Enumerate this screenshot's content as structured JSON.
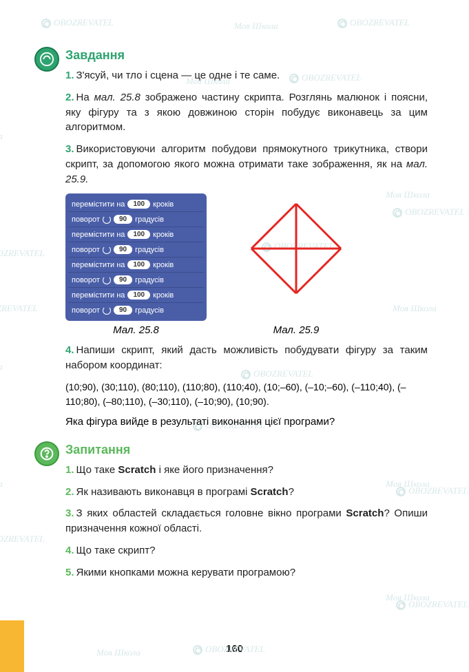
{
  "watermarks": {
    "text1": "Моя Школа",
    "text2": "OBOZREVATEL"
  },
  "section1": {
    "heading": "Завдання",
    "icon_name": "task-icon",
    "items": [
      {
        "n": "1.",
        "html": "З'ясуй, чи тло і сцена — це одне і те саме."
      },
      {
        "n": "2.",
        "html": "На <i>мал. 25.8</i> зображено частину скрипта. Розглянь малюнок і поясни, яку фігуру та з якою довжиною сторін побудує виконавець за цим алгоритмом."
      },
      {
        "n": "3.",
        "html": "Використовуючи алгоритм побудови прямокутного трикутника, створи скрипт, за допомогою якого можна отримати таке зображення, як на <i>мал. 25.9.</i>"
      }
    ],
    "script_blocks": [
      {
        "type": "move",
        "label_pre": "перемістити на",
        "value": "100",
        "label_post": "кроків"
      },
      {
        "type": "turn",
        "label_pre": "поворот",
        "value": "90",
        "label_post": "градусів"
      },
      {
        "type": "move",
        "label_pre": "перемістити на",
        "value": "100",
        "label_post": "кроків"
      },
      {
        "type": "turn",
        "label_pre": "поворот",
        "value": "90",
        "label_post": "градусів"
      },
      {
        "type": "move",
        "label_pre": "перемістити на",
        "value": "100",
        "label_post": "кроків"
      },
      {
        "type": "turn",
        "label_pre": "поворот",
        "value": "90",
        "label_post": "градусів"
      },
      {
        "type": "move",
        "label_pre": "перемістити на",
        "value": "100",
        "label_post": "кроків"
      },
      {
        "type": "turn",
        "label_pre": "поворот",
        "value": "90",
        "label_post": "градусів"
      }
    ],
    "diamond": {
      "stroke": "#e52521",
      "stroke_width": 3,
      "size": 130
    },
    "caption1": "Мал. 25.8",
    "caption2": "Мал. 25.9",
    "item4": {
      "n": "4.",
      "text": "Напиши скрипт, який дасть можливість побудувати фігуру за таким набором координат:"
    },
    "coords": "(10;90), (30;110), (80;110), (110;80), (110;40), (10;–60), (–10;–60), (–110;40), (–110;80), (–80;110), (–30;110), (–10;90), (10;90).",
    "item4_q": "Яка фігура вийде в результаті виконання цієї програми?"
  },
  "section2": {
    "heading": "Запитання",
    "icon_name": "question-icon",
    "items": [
      {
        "n": "1.",
        "html": "Що таке <b>Scratch</b> і яке його призначення?"
      },
      {
        "n": "2.",
        "html": "Як називають виконавця в програмі <b>Scratch</b>?"
      },
      {
        "n": "3.",
        "html": "З яких областей складається головне вікно програми <b>Scratch</b>? Опиши призначення кожної області."
      },
      {
        "n": "4.",
        "html": "Що таке скрипт?"
      },
      {
        "n": "5.",
        "html": "Якими кнопками можна керувати програмою?"
      }
    ]
  },
  "page_number": "160"
}
